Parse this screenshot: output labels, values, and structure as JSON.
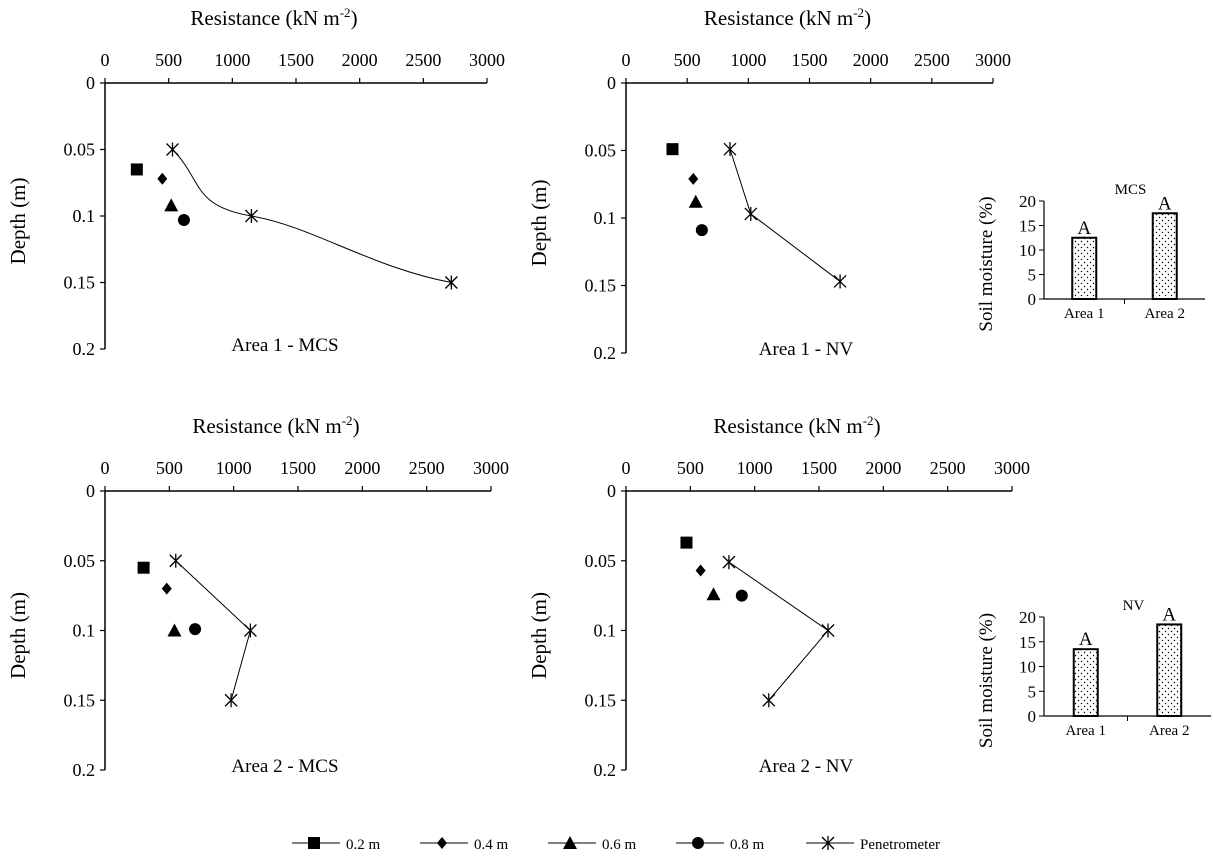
{
  "panels": [
    {
      "title": "Area  1 - MCS",
      "xlabel_main": "Resistance (kN m",
      "xlabel_sup": "-2",
      "xlabel_end": ")",
      "ylabel": "Depth (m)",
      "xticks": [
        "0",
        "500",
        "1000",
        "1500",
        "2000",
        "2500",
        "3000"
      ],
      "yticks": [
        "0",
        "0.05",
        "0.1",
        "0.15",
        "0.2"
      ]
    },
    {
      "title": "Area  1 - NV",
      "xlabel_main": "Resistance (kN m",
      "xlabel_sup": "-2",
      "xlabel_end": ")",
      "ylabel": "Depth (m)",
      "xticks": [
        "0",
        "500",
        "1000",
        "1500",
        "2000",
        "2500",
        "3000"
      ],
      "yticks": [
        "0",
        "0.05",
        "0.1",
        "0.15",
        "0.2"
      ]
    },
    {
      "title": "Area  2 - MCS",
      "xlabel_main": "Resistance (kN m",
      "xlabel_sup": "-2",
      "xlabel_end": ")",
      "ylabel": "Depth (m)",
      "xticks": [
        "0",
        "500",
        "1000",
        "1500",
        "2000",
        "2500",
        "3000"
      ],
      "yticks": [
        "0",
        "0.05",
        "0.1",
        "0.15",
        "0.2"
      ]
    },
    {
      "title": "Area  2 - NV",
      "xlabel_main": "Resistance (kN m",
      "xlabel_sup": "-2",
      "xlabel_end": ")",
      "ylabel": "Depth (m)",
      "xticks": [
        "0",
        "500",
        "1000",
        "1500",
        "2000",
        "2500",
        "3000"
      ],
      "yticks": [
        "0",
        "0.05",
        "0.1",
        "0.15",
        "0.2"
      ]
    }
  ],
  "insets": [
    {
      "title": "MCS",
      "ylabel": "Soil moisture (%)",
      "yticks": [
        "0",
        "5",
        "10",
        "15",
        "20"
      ]
    },
    {
      "title": "NV",
      "ylabel": "Soil moisture (%)",
      "yticks": [
        "0",
        "5",
        "10",
        "15",
        "20"
      ]
    }
  ],
  "legend": [
    {
      "label": "0.2 m",
      "marker": "square"
    },
    {
      "label": "0.4 m",
      "marker": "diamond"
    },
    {
      "label": "0.6 m",
      "marker": "triangle"
    },
    {
      "label": "0.8 m",
      "marker": "circle"
    },
    {
      "label": "Penetrometer",
      "marker": "asterisk"
    }
  ],
  "chart_data": [
    {
      "type": "scatter",
      "title": "Area  1 - MCS",
      "xlabel": "Resistance (kN m-2)",
      "ylabel": "Depth (m)",
      "xlim": [
        0,
        3000
      ],
      "ylim": [
        0,
        0.2
      ],
      "y_axis": "inverted",
      "x_axis_position": "top",
      "series": [
        {
          "name": "0.2 m",
          "marker": "square",
          "points": [
            [
              250,
              0.065
            ]
          ]
        },
        {
          "name": "0.4 m",
          "marker": "diamond",
          "points": [
            [
              450,
              0.072
            ]
          ]
        },
        {
          "name": "0.6 m",
          "marker": "triangle",
          "points": [
            [
              520,
              0.092
            ]
          ]
        },
        {
          "name": "0.8 m",
          "marker": "circle",
          "points": [
            [
              620,
              0.103
            ]
          ]
        },
        {
          "name": "Penetrometer",
          "marker": "asterisk",
          "line": "smooth",
          "points": [
            [
              530,
              0.05
            ],
            [
              1150,
              0.1
            ],
            [
              2720,
              0.15
            ]
          ]
        }
      ]
    },
    {
      "type": "scatter",
      "title": "Area  1 - NV",
      "xlabel": "Resistance (kN m-2)",
      "ylabel": "Depth (m)",
      "xlim": [
        0,
        3000
      ],
      "ylim": [
        0,
        0.2
      ],
      "y_axis": "inverted",
      "x_axis_position": "top",
      "series": [
        {
          "name": "0.2 m",
          "marker": "square",
          "points": [
            [
              380,
              0.049
            ]
          ]
        },
        {
          "name": "0.4 m",
          "marker": "diamond",
          "points": [
            [
              550,
              0.071
            ]
          ]
        },
        {
          "name": "0.6 m",
          "marker": "triangle",
          "points": [
            [
              570,
              0.088
            ]
          ]
        },
        {
          "name": "0.8 m",
          "marker": "circle",
          "points": [
            [
              620,
              0.109
            ]
          ]
        },
        {
          "name": "Penetrometer",
          "marker": "asterisk",
          "line": "straight",
          "points": [
            [
              850,
              0.049
            ],
            [
              1020,
              0.097
            ],
            [
              1750,
              0.147
            ]
          ]
        }
      ]
    },
    {
      "type": "scatter",
      "title": "Area  2 - MCS",
      "xlabel": "Resistance (kN m-2)",
      "ylabel": "Depth (m)",
      "xlim": [
        0,
        3000
      ],
      "ylim": [
        0,
        0.2
      ],
      "y_axis": "inverted",
      "x_axis_position": "top",
      "series": [
        {
          "name": "0.2 m",
          "marker": "square",
          "points": [
            [
              300,
              0.055
            ]
          ]
        },
        {
          "name": "0.4 m",
          "marker": "diamond",
          "points": [
            [
              480,
              0.07
            ]
          ]
        },
        {
          "name": "0.6 m",
          "marker": "triangle",
          "points": [
            [
              540,
              0.1
            ]
          ]
        },
        {
          "name": "0.8 m",
          "marker": "circle",
          "points": [
            [
              700,
              0.099
            ]
          ]
        },
        {
          "name": "Penetrometer",
          "marker": "asterisk",
          "line": "straight",
          "points": [
            [
              550,
              0.05
            ],
            [
              1130,
              0.1
            ],
            [
              980,
              0.15
            ]
          ]
        }
      ]
    },
    {
      "type": "scatter",
      "title": "Area  2 - NV",
      "xlabel": "Resistance (kN m-2)",
      "ylabel": "Depth (m)",
      "xlim": [
        0,
        3000
      ],
      "ylim": [
        0,
        0.2
      ],
      "y_axis": "inverted",
      "x_axis_position": "top",
      "series": [
        {
          "name": "0.2 m",
          "marker": "square",
          "points": [
            [
              470,
              0.037
            ]
          ]
        },
        {
          "name": "0.4 m",
          "marker": "diamond",
          "points": [
            [
              580,
              0.057
            ]
          ]
        },
        {
          "name": "0.6 m",
          "marker": "triangle",
          "points": [
            [
              680,
              0.074
            ]
          ]
        },
        {
          "name": "0.8 m",
          "marker": "circle",
          "points": [
            [
              900,
              0.075
            ]
          ]
        },
        {
          "name": "Penetrometer",
          "marker": "asterisk",
          "line": "straight",
          "points": [
            [
              800,
              0.051
            ],
            [
              1570,
              0.1
            ],
            [
              1110,
              0.15
            ]
          ]
        }
      ]
    },
    {
      "type": "bar",
      "title": "MCS",
      "ylabel": "Soil moisture (%)",
      "categories": [
        "Area 1",
        "Area 2"
      ],
      "values": [
        12.5,
        17.5
      ],
      "data_labels": [
        "A",
        "A"
      ],
      "ylim": [
        0,
        20
      ]
    },
    {
      "type": "bar",
      "title": "NV",
      "ylabel": "Soil moisture (%)",
      "categories": [
        "Area 1",
        "Area 2"
      ],
      "values": [
        13.5,
        18.5
      ],
      "data_labels": [
        "A",
        "A"
      ],
      "ylim": [
        0,
        20
      ]
    }
  ]
}
